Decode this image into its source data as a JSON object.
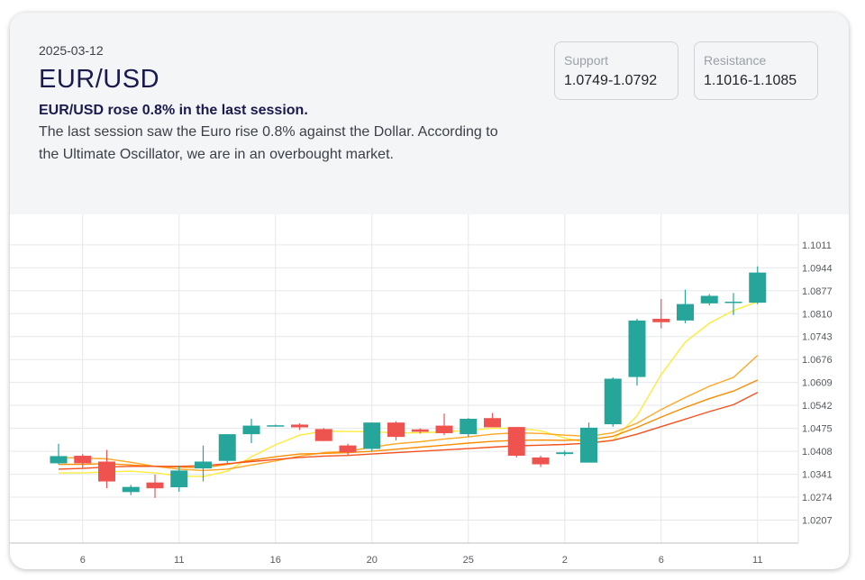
{
  "header": {
    "date": "2025-03-12",
    "pair": "EUR/USD",
    "headline": "EUR/USD rose 0.8% in the last session.",
    "summary": "The last session saw the Euro rise 0.8% against the Dollar. According to the Ultimate Oscillator, we are in an overbought market."
  },
  "levels": {
    "support": {
      "label": "Support",
      "value": "1.0749-1.0792"
    },
    "resistance": {
      "label": "Resistance",
      "value": "1.1016-1.1085"
    }
  },
  "colors": {
    "up": "#26a69a",
    "down": "#ef5350",
    "ma_colors": [
      "#ffeb3b",
      "#ffa726",
      "#fb8c00",
      "#f4511e"
    ]
  },
  "chart_data": {
    "type": "candlestick",
    "ylim": [
      1.014,
      1.11
    ],
    "grid": true,
    "y_ticks": [
      "1.1011",
      "1.0944",
      "1.0877",
      "1.0810",
      "1.0743",
      "1.0676",
      "1.0609",
      "1.0542",
      "1.0475",
      "1.0408",
      "1.0341",
      "1.0274",
      "1.0207"
    ],
    "x_ticks": [
      "6",
      "11",
      "16",
      "20",
      "25",
      "2",
      "6",
      "11"
    ],
    "candles": [
      {
        "o": 1.0373,
        "h": 1.043,
        "l": 1.037,
        "c": 1.0394
      },
      {
        "o": 1.0395,
        "h": 1.04,
        "l": 1.036,
        "c": 1.0373
      },
      {
        "o": 1.0378,
        "h": 1.0412,
        "l": 1.03,
        "c": 1.032
      },
      {
        "o": 1.0289,
        "h": 1.031,
        "l": 1.028,
        "c": 1.0304
      },
      {
        "o": 1.0317,
        "h": 1.034,
        "l": 1.0272,
        "c": 1.03
      },
      {
        "o": 1.0303,
        "h": 1.0366,
        "l": 1.029,
        "c": 1.0352
      },
      {
        "o": 1.0358,
        "h": 1.0425,
        "l": 1.032,
        "c": 1.0378
      },
      {
        "o": 1.038,
        "h": 1.0458,
        "l": 1.0374,
        "c": 1.0458
      },
      {
        "o": 1.0458,
        "h": 1.0503,
        "l": 1.0432,
        "c": 1.0483
      },
      {
        "o": 1.0484,
        "h": 1.0486,
        "l": 1.048,
        "c": 1.0484
      },
      {
        "o": 1.0486,
        "h": 1.049,
        "l": 1.047,
        "c": 1.0478
      },
      {
        "o": 1.0473,
        "h": 1.0476,
        "l": 1.0438,
        "c": 1.0438
      },
      {
        "o": 1.0425,
        "h": 1.043,
        "l": 1.0395,
        "c": 1.0405
      },
      {
        "o": 1.0415,
        "h": 1.0492,
        "l": 1.0408,
        "c": 1.0492
      },
      {
        "o": 1.0492,
        "h": 1.0496,
        "l": 1.044,
        "c": 1.045
      },
      {
        "o": 1.0472,
        "h": 1.0475,
        "l": 1.046,
        "c": 1.0465
      },
      {
        "o": 1.0483,
        "h": 1.0518,
        "l": 1.0455,
        "c": 1.0461
      },
      {
        "o": 1.0458,
        "h": 1.0505,
        "l": 1.045,
        "c": 1.0503
      },
      {
        "o": 1.0505,
        "h": 1.052,
        "l": 1.0478,
        "c": 1.0478
      },
      {
        "o": 1.0479,
        "h": 1.0479,
        "l": 1.039,
        "c": 1.0395
      },
      {
        "o": 1.039,
        "h": 1.0395,
        "l": 1.0362,
        "c": 1.037
      },
      {
        "o": 1.04,
        "h": 1.041,
        "l": 1.0395,
        "c": 1.0405
      },
      {
        "o": 1.0375,
        "h": 1.0492,
        "l": 1.0375,
        "c": 1.0477
      },
      {
        "o": 1.0487,
        "h": 1.0624,
        "l": 1.048,
        "c": 1.062
      },
      {
        "o": 1.0625,
        "h": 1.0795,
        "l": 1.06,
        "c": 1.079
      },
      {
        "o": 1.0795,
        "h": 1.0853,
        "l": 1.0767,
        "c": 1.0785
      },
      {
        "o": 1.079,
        "h": 1.088,
        "l": 1.0782,
        "c": 1.0838
      },
      {
        "o": 1.084,
        "h": 1.0867,
        "l": 1.0834,
        "c": 1.0862
      },
      {
        "o": 1.0842,
        "h": 1.087,
        "l": 1.0806,
        "c": 1.0845
      },
      {
        "o": 1.0842,
        "h": 1.0948,
        "l": 1.0838,
        "c": 1.093
      }
    ],
    "moving_averages": [
      {
        "values": [
          1.0345,
          1.0345,
          1.0348,
          1.035,
          1.0345,
          1.0336,
          1.0334,
          1.035,
          1.0392,
          1.0427,
          1.0455,
          1.0467,
          1.0466,
          1.0465,
          1.0462,
          1.0462,
          1.0465,
          1.0469,
          1.0475,
          1.0475,
          1.0468,
          1.0447,
          1.0432,
          1.044,
          1.0512,
          1.0632,
          1.0727,
          1.0782,
          1.0819,
          1.0845
        ]
      },
      {
        "values": [
          1.039,
          1.0388,
          1.0386,
          1.0376,
          1.0364,
          1.0356,
          1.0352,
          1.0356,
          1.0368,
          1.038,
          1.0394,
          1.0404,
          1.0408,
          1.042,
          1.043,
          1.0436,
          1.0444,
          1.045,
          1.0458,
          1.0462,
          1.046,
          1.0455,
          1.0452,
          1.0462,
          1.049,
          1.053,
          1.0565,
          1.0598,
          1.0624,
          1.0688
        ]
      },
      {
        "values": [
          1.037,
          1.037,
          1.0372,
          1.0368,
          1.0364,
          1.0362,
          1.036,
          1.037,
          1.0382,
          1.0392,
          1.04,
          1.0402,
          1.0404,
          1.0408,
          1.0414,
          1.042,
          1.0426,
          1.0432,
          1.0437,
          1.044,
          1.0441,
          1.044,
          1.0442,
          1.0452,
          1.0478,
          1.0508,
          1.0536,
          1.0562,
          1.0584,
          1.0616
        ]
      },
      {
        "values": [
          1.0356,
          1.0358,
          1.0362,
          1.0364,
          1.0364,
          1.0364,
          1.0366,
          1.0372,
          1.0378,
          1.0384,
          1.039,
          1.0394,
          1.0396,
          1.04,
          1.0404,
          1.0408,
          1.0412,
          1.0416,
          1.042,
          1.0424,
          1.0426,
          1.0428,
          1.0432,
          1.044,
          1.0458,
          1.048,
          1.0502,
          1.0524,
          1.0544,
          1.058
        ]
      }
    ]
  }
}
